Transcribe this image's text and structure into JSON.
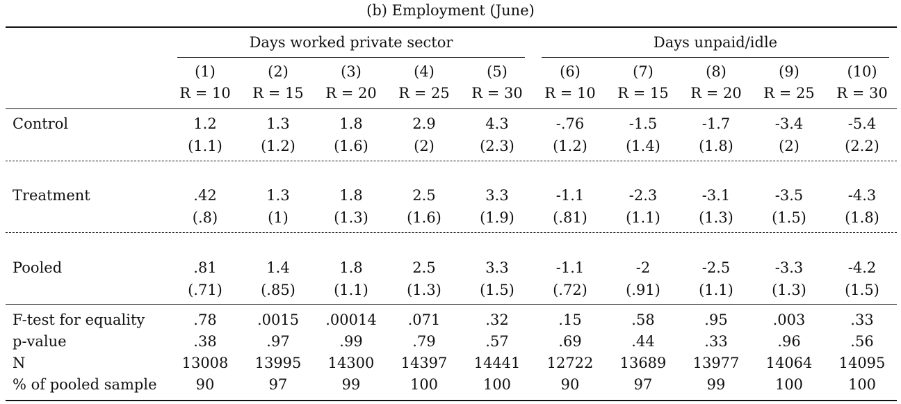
{
  "caption": "(b) Employment (June)",
  "groups": [
    "Days worked private sector",
    "Days unpaid/idle"
  ],
  "columns": [
    {
      "num": "(1)",
      "r": "R = 10"
    },
    {
      "num": "(2)",
      "r": "R = 15"
    },
    {
      "num": "(3)",
      "r": "R = 20"
    },
    {
      "num": "(4)",
      "r": "R = 25"
    },
    {
      "num": "(5)",
      "r": "R = 30"
    },
    {
      "num": "(6)",
      "r": "R = 10"
    },
    {
      "num": "(7)",
      "r": "R = 15"
    },
    {
      "num": "(8)",
      "r": "R = 20"
    },
    {
      "num": "(9)",
      "r": "R = 25"
    },
    {
      "num": "(10)",
      "r": "R = 30"
    }
  ],
  "estimates": [
    {
      "label": "Control",
      "coef": [
        "1.2",
        "1.3",
        "1.8",
        "2.9",
        "4.3",
        "-.76",
        "-1.5",
        "-1.7",
        "-3.4",
        "-5.4"
      ],
      "se": [
        "(1.1)",
        "(1.2)",
        "(1.6)",
        "(2)",
        "(2.3)",
        "(1.2)",
        "(1.4)",
        "(1.8)",
        "(2)",
        "(2.2)"
      ]
    },
    {
      "label": "Treatment",
      "coef": [
        ".42",
        "1.3",
        "1.8",
        "2.5",
        "3.3",
        "-1.1",
        "-2.3",
        "-3.1",
        "-3.5",
        "-4.3"
      ],
      "se": [
        "(.8)",
        "(1)",
        "(1.3)",
        "(1.6)",
        "(1.9)",
        "(.81)",
        "(1.1)",
        "(1.3)",
        "(1.5)",
        "(1.8)"
      ]
    },
    {
      "label": "Pooled",
      "coef": [
        ".81",
        "1.4",
        "1.8",
        "2.5",
        "3.3",
        "-1.1",
        "-2",
        "-2.5",
        "-3.3",
        "-4.2"
      ],
      "se": [
        "(.71)",
        "(.85)",
        "(1.1)",
        "(1.3)",
        "(1.5)",
        "(.72)",
        "(.91)",
        "(1.1)",
        "(1.3)",
        "(1.5)"
      ]
    }
  ],
  "stats": [
    {
      "label": "F-test for equality",
      "values": [
        ".78",
        ".0015",
        ".00014",
        ".071",
        ".32",
        ".15",
        ".58",
        ".95",
        ".003",
        ".33"
      ]
    },
    {
      "label": "p-value",
      "values": [
        ".38",
        ".97",
        ".99",
        ".79",
        ".57",
        ".69",
        ".44",
        ".33",
        ".96",
        ".56"
      ]
    },
    {
      "label": "N",
      "values": [
        "13008",
        "13995",
        "14300",
        "14397",
        "14441",
        "12722",
        "13689",
        "13977",
        "14064",
        "14095"
      ]
    },
    {
      "label": "% of pooled sample",
      "values": [
        "90",
        "97",
        "99",
        "100",
        "100",
        "90",
        "97",
        "99",
        "100",
        "100"
      ]
    }
  ]
}
